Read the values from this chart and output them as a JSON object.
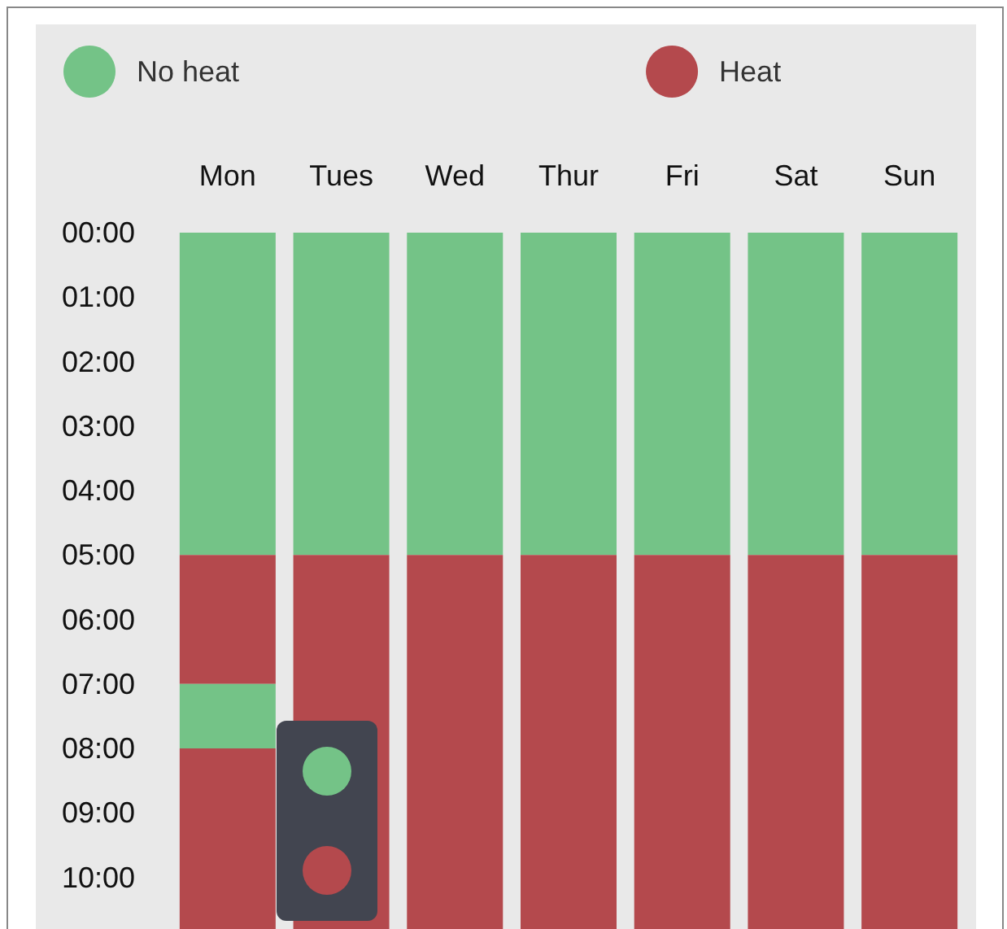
{
  "chart_data": {
    "type": "bar",
    "stacked": true,
    "categories": [
      "Mon",
      "Tues",
      "Wed",
      "Thur",
      "Fri",
      "Sat",
      "Sun"
    ],
    "series": [
      {
        "name": "No heat",
        "color": "#74c387",
        "values": [
          5,
          5,
          5,
          5,
          5,
          5,
          5
        ]
      },
      {
        "name": "Heat",
        "color": "#b4494d",
        "values": [
          2,
          5.8,
          5.8,
          5.8,
          5.8,
          5.8,
          5.8
        ]
      },
      {
        "color": "#74c387",
        "values": [
          1,
          null,
          null,
          null,
          null,
          null,
          null
        ]
      },
      {
        "color": "#b4494d",
        "values": [
          2.8,
          null,
          null,
          null,
          null,
          null,
          null
        ]
      }
    ],
    "ylim": [
      10.8,
      0
    ],
    "yticks": [
      {
        "value": 0,
        "label": "00:00"
      },
      {
        "value": 1,
        "label": "01:00"
      },
      {
        "value": 2,
        "label": "02:00"
      },
      {
        "value": 3,
        "label": "03:00"
      },
      {
        "value": 4,
        "label": "04:00"
      },
      {
        "value": 5,
        "label": "05:00"
      },
      {
        "value": 6,
        "label": "06:00"
      },
      {
        "value": 7,
        "label": "07:00"
      },
      {
        "value": 8,
        "label": "08:00"
      },
      {
        "value": 9,
        "label": "09:00"
      },
      {
        "value": 10,
        "label": "10:00"
      }
    ],
    "legend": "top",
    "grid": false
  }
}
